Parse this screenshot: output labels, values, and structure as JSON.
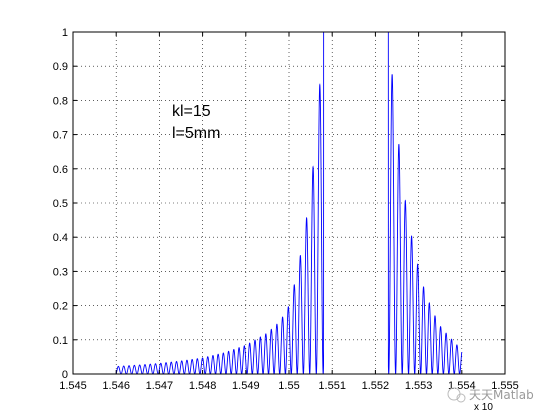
{
  "chart_data": {
    "type": "line",
    "title": "",
    "xlabel": "",
    "ylabel": "",
    "xlim": [
      1.545,
      1.555
    ],
    "ylim": [
      0,
      1
    ],
    "grid": true,
    "line_color": "#0000ff",
    "x_ticks": [
      "1.545",
      "1.546",
      "1.547",
      "1.548",
      "1.549",
      "1.55",
      "1.551",
      "1.552",
      "1.553",
      "1.554",
      "1.555"
    ],
    "y_ticks": [
      "0",
      "0.1",
      "0.2",
      "0.3",
      "0.4",
      "0.5",
      "0.6",
      "0.7",
      "0.8",
      "0.9",
      "1"
    ],
    "x_exponent": "x 10",
    "annotations": [
      "kl=15",
      "l=5mm"
    ],
    "x_range_plotted": [
      1.546,
      1.554
    ],
    "stopband": [
      1.5508,
      1.5523
    ],
    "envelope": {
      "x": [
        1.546,
        1.5465,
        1.547,
        1.5475,
        1.548,
        1.5485,
        1.549,
        1.5495,
        1.5498,
        1.55,
        1.5502,
        1.5504,
        1.5506,
        1.5508,
        1.5523,
        1.5525,
        1.5527,
        1.5529,
        1.5531,
        1.5533,
        1.5535,
        1.5537,
        1.554
      ],
      "y": [
        0.022,
        0.026,
        0.031,
        0.038,
        0.047,
        0.062,
        0.084,
        0.12,
        0.155,
        0.2,
        0.3,
        0.45,
        0.65,
        1.0,
        1.0,
        0.72,
        0.5,
        0.36,
        0.26,
        0.19,
        0.14,
        0.11,
        0.07
      ]
    }
  },
  "watermark": "天天Matlab"
}
